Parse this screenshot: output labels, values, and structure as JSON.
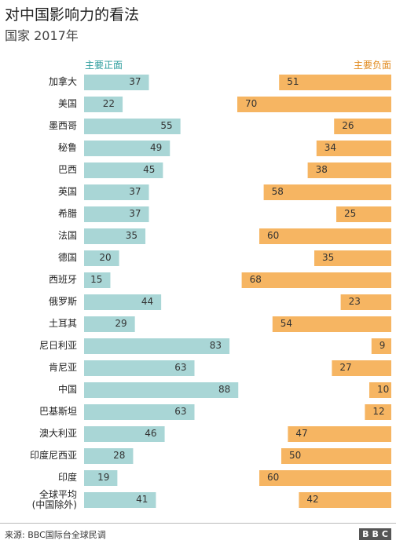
{
  "chart_data": {
    "type": "diverging-bar",
    "title": "对中国影响力的看法",
    "subtitle": "国家 2017年",
    "categories": [
      "加拿大",
      "美国",
      "墨西哥",
      "秘鲁",
      "巴西",
      "英国",
      "希腊",
      "法国",
      "德国",
      "西班牙",
      "俄罗斯",
      "土耳其",
      "尼日利亚",
      "肯尼亚",
      "中国",
      "巴基斯坦",
      "澳大利亚",
      "印度尼西亚",
      "印度",
      "全球平均\n(中国除外)"
    ],
    "series": [
      {
        "name": "主要正面",
        "color": "#a9d6d6",
        "label_color": "#2b9c9c",
        "values": [
          37,
          22,
          55,
          49,
          45,
          37,
          37,
          35,
          20,
          15,
          44,
          29,
          83,
          63,
          88,
          63,
          46,
          28,
          19,
          41
        ]
      },
      {
        "name": "主要负面",
        "color": "#f6b562",
        "label_color": "#e0891c",
        "values": [
          51,
          70,
          26,
          34,
          38,
          58,
          25,
          60,
          35,
          68,
          23,
          54,
          9,
          27,
          10,
          12,
          47,
          50,
          60,
          42
        ]
      }
    ],
    "source": "来源: BBC国际台全球民调",
    "logo": "BBC"
  }
}
